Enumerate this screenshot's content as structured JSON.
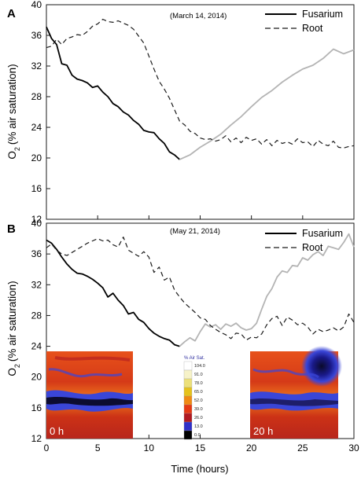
{
  "figure": {
    "shared_ylabel": "(% air saturation)",
    "ylabel_symbol": "O",
    "ylabel_subscript": "2",
    "xlabel": "Time (hours)"
  },
  "colors": {
    "fusarium_dark": "#000000",
    "fusarium_light": "#b4b4b4",
    "root": "#1a1a1a",
    "axis": "#1a1a1a"
  },
  "chart_data": [
    {
      "type": "line",
      "panel_label": "A",
      "annotation": "(March 14, 2014)",
      "xlim": [
        0,
        30
      ],
      "ylim": [
        12,
        40
      ],
      "xticks": [
        0,
        5,
        10,
        15,
        20,
        25,
        30
      ],
      "yticks": [
        12,
        16,
        20,
        24,
        28,
        32,
        36,
        40
      ],
      "legend_position": "top-right",
      "legend": [
        "Fusarium",
        "Root"
      ],
      "series": [
        {
          "name": "Fusarium",
          "style": "solid",
          "segments": [
            {
              "shade": "dark",
              "x": [
                0,
                0.5,
                1,
                1.5,
                2,
                2.5,
                3,
                3.5,
                4,
                4.5,
                5,
                5.5,
                6,
                6.5,
                7,
                7.5,
                8,
                8.5,
                9,
                9.5,
                10,
                10.5,
                11,
                11.5,
                12,
                12.5,
                13
              ],
              "y": [
                37.1,
                35.6,
                34.8,
                32.3,
                32.1,
                30.8,
                30.3,
                30.1,
                29.8,
                29.2,
                29.4,
                28.6,
                28.0,
                27.1,
                26.7,
                26.0,
                25.6,
                24.9,
                24.4,
                23.6,
                23.4,
                23.3,
                22.5,
                21.9,
                20.8,
                20.4,
                19.8
              ]
            },
            {
              "shade": "light",
              "x": [
                13,
                14,
                15,
                16,
                17,
                18,
                19,
                20,
                21,
                22,
                23,
                24,
                25,
                26,
                27,
                28,
                29,
                30
              ],
              "y": [
                19.8,
                20.4,
                21.4,
                22.2,
                23.1,
                24.3,
                25.4,
                26.7,
                27.9,
                28.8,
                29.9,
                30.8,
                31.6,
                32.1,
                33.0,
                34.2,
                33.6,
                34.1
              ]
            }
          ]
        },
        {
          "name": "Root",
          "style": "dashed",
          "x": [
            0,
            0.5,
            1,
            1.5,
            2,
            2.5,
            3,
            3.5,
            4,
            4.5,
            5,
            5.5,
            6,
            6.5,
            7,
            7.5,
            8,
            8.5,
            9,
            9.5,
            10,
            10.5,
            11,
            11.5,
            12,
            12.5,
            13,
            13.5,
            14,
            14.5,
            15,
            15.5,
            16,
            16.5,
            17,
            17.5,
            18,
            18.5,
            19,
            19.5,
            20,
            20.5,
            21,
            21.5,
            22,
            22.5,
            23,
            23.5,
            24,
            24.5,
            25,
            25.5,
            26,
            26.5,
            27,
            27.5,
            28,
            28.5,
            29,
            29.5,
            30
          ],
          "y": [
            34.4,
            34.6,
            35.5,
            34.8,
            35.6,
            35.8,
            36.1,
            36.0,
            36.5,
            37.2,
            37.5,
            38.1,
            37.8,
            37.7,
            37.9,
            37.6,
            37.3,
            36.8,
            35.9,
            35.0,
            33.3,
            31.6,
            30.0,
            29.0,
            27.8,
            26.3,
            24.8,
            24.3,
            23.5,
            23.2,
            22.6,
            22.4,
            22.5,
            22.2,
            22.4,
            22.9,
            22.1,
            22.6,
            22.0,
            22.7,
            22.3,
            22.5,
            21.8,
            22.4,
            21.6,
            22.3,
            21.9,
            22.1,
            21.8,
            22.5,
            22.0,
            22.1,
            21.5,
            22.3,
            21.8,
            21.6,
            22.2,
            21.4,
            21.3,
            21.5,
            21.6
          ]
        }
      ]
    },
    {
      "type": "line",
      "panel_label": "B",
      "annotation": "(May 21, 2014)",
      "xlim": [
        0,
        30
      ],
      "ylim": [
        12,
        40
      ],
      "xticks": [
        0,
        5,
        10,
        15,
        20,
        25,
        30
      ],
      "xtick_labels": [
        "0",
        "5",
        "10",
        "15",
        "20",
        "25",
        "30"
      ],
      "yticks": [
        12,
        16,
        20,
        24,
        28,
        32,
        36,
        40
      ],
      "legend_position": "top-right",
      "legend": [
        "Fusarium",
        "Root"
      ],
      "series": [
        {
          "name": "Fusarium",
          "style": "solid",
          "segments": [
            {
              "shade": "dark",
              "x": [
                0,
                0.5,
                1,
                1.5,
                2,
                2.5,
                3,
                3.5,
                4,
                4.5,
                5,
                5.5,
                6,
                6.5,
                7,
                7.5,
                8,
                8.5,
                9,
                9.5,
                10,
                10.5,
                11,
                11.5,
                12,
                12.5,
                13
              ],
              "y": [
                37.8,
                37.4,
                36.6,
                35.6,
                34.7,
                34.0,
                33.5,
                33.4,
                33.1,
                32.7,
                32.2,
                31.6,
                30.4,
                30.9,
                30.0,
                29.3,
                28.2,
                28.4,
                27.5,
                27.1,
                26.3,
                25.7,
                25.3,
                25.0,
                24.8,
                24.2,
                24.0
              ]
            },
            {
              "shade": "light",
              "x": [
                13,
                13.5,
                14,
                14.5,
                15,
                15.5,
                16,
                16.5,
                17,
                17.5,
                18,
                18.5,
                19,
                19.5,
                20,
                20.5,
                21,
                21.5,
                22,
                22.5,
                23,
                23.5,
                24,
                24.5,
                25,
                25.5,
                26,
                26.5,
                27,
                27.5,
                28,
                28.5,
                29,
                29.5,
                30
              ],
              "y": [
                24.0,
                24.6,
                25.1,
                24.7,
                25.9,
                26.9,
                26.5,
                26.8,
                26.2,
                26.9,
                26.6,
                27.0,
                26.4,
                26.1,
                26.3,
                27.0,
                28.8,
                30.5,
                31.5,
                33.0,
                33.8,
                33.6,
                34.5,
                34.4,
                35.5,
                35.2,
                35.9,
                36.3,
                35.8,
                37.0,
                36.8,
                36.6,
                37.5,
                38.6,
                36.9
              ]
            }
          ]
        },
        {
          "name": "Root",
          "style": "dashed",
          "x": [
            0,
            0.5,
            1,
            1.5,
            2,
            2.5,
            3,
            3.5,
            4,
            4.5,
            5,
            5.5,
            6,
            6.5,
            7,
            7.5,
            8,
            8.5,
            9,
            9.5,
            10,
            10.5,
            11,
            11.5,
            12,
            12.5,
            13,
            13.5,
            14,
            14.5,
            15,
            15.5,
            16,
            16.5,
            17,
            17.5,
            18,
            18.5,
            19,
            19.5,
            20,
            20.5,
            21,
            21.5,
            22,
            22.5,
            23,
            23.5,
            24,
            24.5,
            25,
            25.5,
            26,
            26.5,
            27,
            27.5,
            28,
            28.5,
            29,
            29.5,
            30
          ],
          "y": [
            36.8,
            37.3,
            36.5,
            36.0,
            35.8,
            36.2,
            36.6,
            37.0,
            37.4,
            37.7,
            38.0,
            37.7,
            37.8,
            37.2,
            36.9,
            38.2,
            36.5,
            36.1,
            35.7,
            36.3,
            35.6,
            33.6,
            34.3,
            32.6,
            33.0,
            31.3,
            30.4,
            29.6,
            29.0,
            28.4,
            27.7,
            27.5,
            26.7,
            26.2,
            25.8,
            25.5,
            25.0,
            25.7,
            25.6,
            24.8,
            25.2,
            25.1,
            25.6,
            26.8,
            27.6,
            27.9,
            26.7,
            27.8,
            27.4,
            26.8,
            27.0,
            26.5,
            25.6,
            26.2,
            25.9,
            26.1,
            26.4,
            26.0,
            26.5,
            28.2,
            27.1
          ]
        }
      ],
      "insets": {
        "left_label": "0 h",
        "right_label": "20 h",
        "colorbar_title": "% Air Sat.",
        "colorbar_ticks": [
          "104.0",
          "91.0",
          "78.0",
          "65.0",
          "52.0",
          "39.0",
          "26.0",
          "13.0",
          "0.0"
        ],
        "colorbar_colors": [
          "#ffffff",
          "#f6f2c8",
          "#ece07a",
          "#e6c21c",
          "#f08a14",
          "#e53a14",
          "#b01a22",
          "#3030c8",
          "#000000"
        ]
      }
    }
  ]
}
